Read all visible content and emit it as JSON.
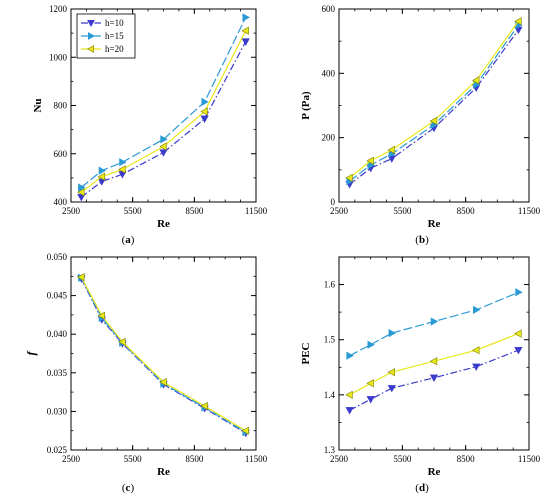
{
  "chart_data": [
    {
      "id": "a",
      "type": "line",
      "caption_letter": "a",
      "xlabel": "Re",
      "ylabel": "Nu",
      "ylabel_italic": false,
      "xlim": [
        2500,
        11500
      ],
      "ylim": [
        400,
        1200
      ],
      "xticks": [
        2500,
        5500,
        8500,
        11500
      ],
      "yticks": [
        400,
        600,
        800,
        1000,
        1200
      ],
      "ytick_labels": [
        "400",
        "600",
        "800",
        "1000",
        "1200"
      ],
      "grid": false,
      "legend": {
        "placement": "top-left",
        "entries": [
          "h=10",
          "h=15",
          "h=20"
        ]
      },
      "x": [
        3000,
        4000,
        5000,
        7000,
        9000,
        11000
      ],
      "series": [
        {
          "name": "h=10",
          "values": [
            420,
            485,
            515,
            605,
            745,
            1065
          ]
        },
        {
          "name": "h=15",
          "values": [
            460,
            530,
            565,
            660,
            815,
            1165
          ]
        },
        {
          "name": "h=20",
          "values": [
            440,
            505,
            535,
            630,
            775,
            1110
          ]
        }
      ]
    },
    {
      "id": "b",
      "type": "line",
      "caption_letter": "b",
      "xlabel": "Re",
      "ylabel": "P (Pa)",
      "ylabel_italic": false,
      "xlim": [
        2500,
        11500
      ],
      "ylim": [
        0,
        600
      ],
      "xticks": [
        2500,
        5500,
        8500,
        11500
      ],
      "yticks": [
        0,
        200,
        400,
        600
      ],
      "ytick_labels": [
        "0",
        "200",
        "400",
        "600"
      ],
      "grid": false,
      "x": [
        3000,
        4000,
        5000,
        7000,
        9000,
        11000
      ],
      "series": [
        {
          "name": "h=10",
          "values": [
            55,
            105,
            135,
            230,
            355,
            535
          ]
        },
        {
          "name": "h=15",
          "values": [
            65,
            115,
            150,
            240,
            365,
            550
          ]
        },
        {
          "name": "h=20",
          "values": [
            75,
            128,
            162,
            252,
            378,
            562
          ]
        }
      ]
    },
    {
      "id": "c",
      "type": "line",
      "caption_letter": "c",
      "xlabel": "Re",
      "ylabel": "f",
      "ylabel_italic": true,
      "xlim": [
        2500,
        11500
      ],
      "ylim": [
        0.025,
        0.05
      ],
      "xticks": [
        2500,
        5500,
        8500,
        11500
      ],
      "yticks": [
        0.025,
        0.03,
        0.035,
        0.04,
        0.045,
        0.05
      ],
      "ytick_labels": [
        "0.025",
        "0.030",
        "0.035",
        "0.040",
        "0.045",
        "0.050"
      ],
      "grid": false,
      "x": [
        3000,
        4000,
        5000,
        7000,
        9000,
        11000
      ],
      "series": [
        {
          "name": "h=10",
          "values": [
            0.0472,
            0.0419,
            0.0388,
            0.0335,
            0.0304,
            0.0272
          ]
        },
        {
          "name": "h=15",
          "values": [
            0.0473,
            0.0421,
            0.0389,
            0.0336,
            0.0305,
            0.0273
          ]
        },
        {
          "name": "h=20",
          "values": [
            0.0474,
            0.0424,
            0.039,
            0.0338,
            0.0307,
            0.0275
          ]
        }
      ]
    },
    {
      "id": "d",
      "type": "line",
      "caption_letter": "d",
      "xlabel": "Re",
      "ylabel": "PEC",
      "ylabel_italic": false,
      "xlim": [
        2500,
        11500
      ],
      "ylim": [
        1.3,
        1.65
      ],
      "xticks": [
        2500,
        5500,
        8500,
        11500
      ],
      "yticks": [
        1.3,
        1.4,
        1.5,
        1.6
      ],
      "ytick_labels": [
        "1.3",
        "1.4",
        "1.5",
        "1.6"
      ],
      "grid": false,
      "x": [
        3000,
        4000,
        5000,
        7000,
        9000,
        11000
      ],
      "series": [
        {
          "name": "h=10",
          "values": [
            1.372,
            1.392,
            1.412,
            1.431,
            1.451,
            1.481
          ]
        },
        {
          "name": "h=15",
          "values": [
            1.471,
            1.491,
            1.512,
            1.533,
            1.554,
            1.586
          ]
        },
        {
          "name": "h=20",
          "values": [
            1.4,
            1.421,
            1.441,
            1.461,
            1.481,
            1.511
          ]
        }
      ]
    }
  ],
  "series_styles": [
    {
      "name": "h=10",
      "color": "#3a3acc",
      "marker": "triangle-down",
      "dash": "dash-dot"
    },
    {
      "name": "h=15",
      "color": "#2a9ad4",
      "marker": "triangle-right",
      "dash": "long-dash"
    },
    {
      "name": "h=20",
      "color": "#e8e81a",
      "marker": "triangle-left",
      "dash": "solid"
    }
  ]
}
